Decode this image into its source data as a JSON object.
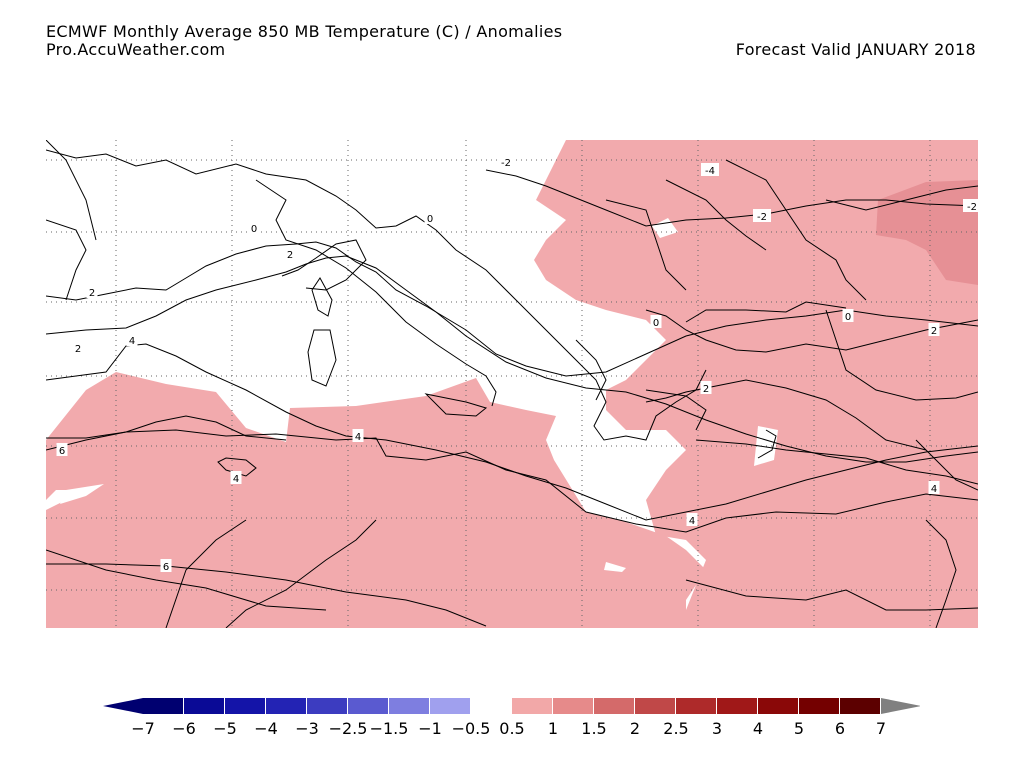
{
  "header": {
    "title": "ECMWF Monthly Average  850 MB Temperature (C) / Anomalies",
    "source": "Pro.AccuWeather.com",
    "valid": "Forecast Valid JANUARY 2018"
  },
  "contour_labels": [
    "-2",
    "-4",
    "-2",
    "-2",
    "0",
    "2",
    "2",
    "0",
    "2",
    "4",
    "6",
    "4",
    "4",
    "6",
    "0",
    "0",
    "2",
    "4",
    "4",
    "2"
  ],
  "legend": {
    "labels": [
      "−7",
      "−6",
      "−5",
      "−4",
      "−3",
      "−2.5",
      "−1.5",
      "−1",
      "−0.5",
      "0.5",
      "1",
      "1.5",
      "2",
      "2.5",
      "3",
      "4",
      "5",
      "6",
      "7"
    ],
    "colors": {
      "negative": [
        "#000070",
        "#0a0a96",
        "#1414a8",
        "#2323b4",
        "#3c3cc0",
        "#5a5ad0",
        "#7e7ee0",
        "#a0a0ee"
      ],
      "positive": [
        "#f2a8a8",
        "#e68a8a",
        "#d46a6a",
        "#c04848",
        "#ae2a2a",
        "#a01818",
        "#8a0808",
        "#740000",
        "#5c0000"
      ],
      "left_arrow": "#000070",
      "right_arrow": "#808080"
    }
  },
  "anomaly_fill": "#f2aaad",
  "anomaly_fill_strong": "#e69095"
}
